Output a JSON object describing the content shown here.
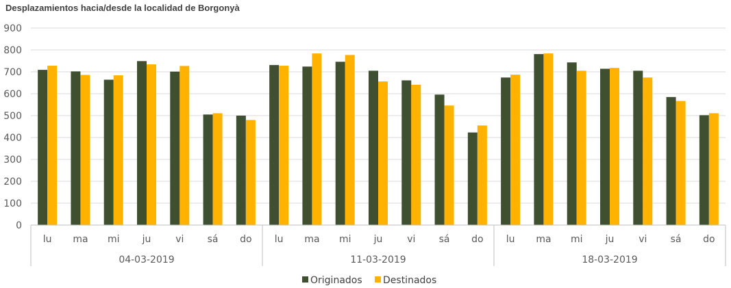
{
  "chart_data": {
    "type": "bar",
    "title": "Desplazamientos hacia/desde la localidad de Borgonyà",
    "xlabel": "",
    "ylabel": "",
    "ylim": [
      0,
      900
    ],
    "yticks": [
      0,
      100,
      200,
      300,
      400,
      500,
      600,
      700,
      800,
      900
    ],
    "grid": true,
    "legend_position": "bottom",
    "groups": [
      {
        "label": "04-03-2019",
        "categories": [
          "lu",
          "ma",
          "mi",
          "ju",
          "vi",
          "sá",
          "do"
        ]
      },
      {
        "label": "11-03-2019",
        "categories": [
          "lu",
          "ma",
          "mi",
          "ju",
          "vi",
          "sá",
          "do"
        ]
      },
      {
        "label": "18-03-2019",
        "categories": [
          "lu",
          "ma",
          "mi",
          "ju",
          "vi",
          "sá",
          "do"
        ]
      }
    ],
    "series": [
      {
        "name": "Originados",
        "color": "#3e5030",
        "values": [
          709,
          702,
          664,
          749,
          701,
          505,
          500,
          731,
          724,
          746,
          705,
          661,
          596,
          423,
          674,
          781,
          743,
          714,
          705,
          585,
          502
        ]
      },
      {
        "name": "Destinados",
        "color": "#ffb300",
        "values": [
          728,
          686,
          684,
          734,
          727,
          511,
          480,
          728,
          784,
          777,
          656,
          641,
          546,
          455,
          687,
          784,
          705,
          718,
          674,
          567,
          511
        ]
      }
    ]
  }
}
